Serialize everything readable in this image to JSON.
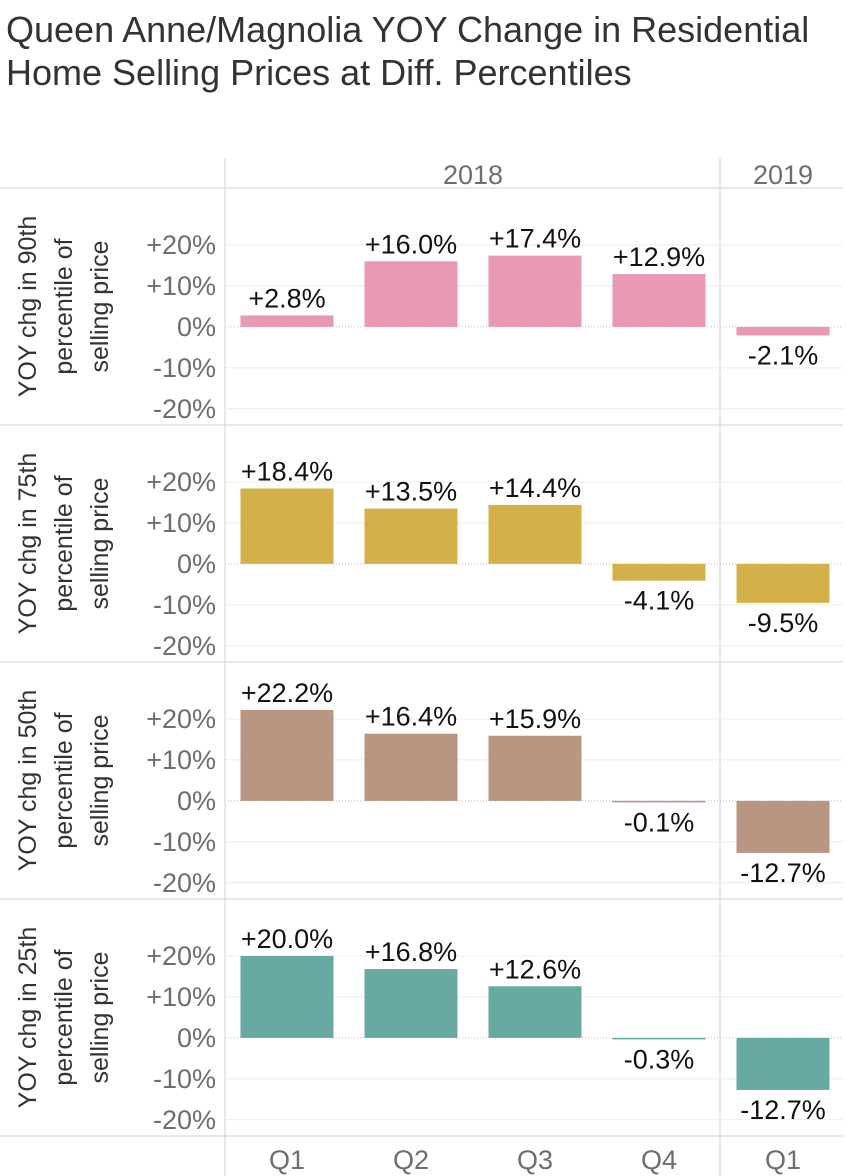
{
  "title": "Queen Anne/Magnolia YOY Change in Residential Home Selling Prices at Diff. Percentiles",
  "chart_data": {
    "type": "bar",
    "title": "Queen Anne/Magnolia YOY Change in Residential Home Selling Prices at Diff. Percentiles",
    "year_headers": [
      {
        "label": "2018",
        "quarters": 4
      },
      {
        "label": "2019",
        "quarters": 1
      }
    ],
    "categories": [
      "Q1",
      "Q2",
      "Q3",
      "Q4",
      "Q1"
    ],
    "y_ticks": [
      {
        "value": 20,
        "label": "+20%"
      },
      {
        "value": 10,
        "label": "+10%"
      },
      {
        "value": 0,
        "label": "0%"
      },
      {
        "value": -10,
        "label": "-10%"
      },
      {
        "value": -20,
        "label": "-20%"
      }
    ],
    "ylim": [
      -22,
      30
    ],
    "grid": true,
    "series": [
      {
        "name": "90th",
        "ylabel_lines": [
          "YOY chg in 90th",
          "percentile of",
          "selling price"
        ],
        "color": "#E89AB3",
        "values": [
          2.8,
          16.0,
          17.4,
          12.9,
          -2.1
        ],
        "labels": [
          "+2.8%",
          "+16.0%",
          "+17.4%",
          "+12.9%",
          "-2.1%"
        ]
      },
      {
        "name": "75th",
        "ylabel_lines": [
          "YOY chg in 75th",
          "percentile of",
          "selling price"
        ],
        "color": "#D4B048",
        "values": [
          18.4,
          13.5,
          14.4,
          -4.1,
          -9.5
        ],
        "labels": [
          "+18.4%",
          "+13.5%",
          "+14.4%",
          "-4.1%",
          "-9.5%"
        ]
      },
      {
        "name": "50th",
        "ylabel_lines": [
          "YOY chg in 50th",
          "percentile of",
          "selling price"
        ],
        "color": "#B99682",
        "values": [
          22.2,
          16.4,
          15.9,
          -0.1,
          -12.7
        ],
        "labels": [
          "+22.2%",
          "+16.4%",
          "+15.9%",
          "-0.1%",
          "-12.7%"
        ]
      },
      {
        "name": "25th",
        "ylabel_lines": [
          "YOY chg in 25th",
          "percentile of",
          "selling price"
        ],
        "color": "#69A9A3",
        "values": [
          20.0,
          16.8,
          12.6,
          -0.3,
          -12.7
        ],
        "labels": [
          "+20.0%",
          "+16.8%",
          "+12.6%",
          "-0.3%",
          "-12.7%"
        ]
      }
    ]
  }
}
